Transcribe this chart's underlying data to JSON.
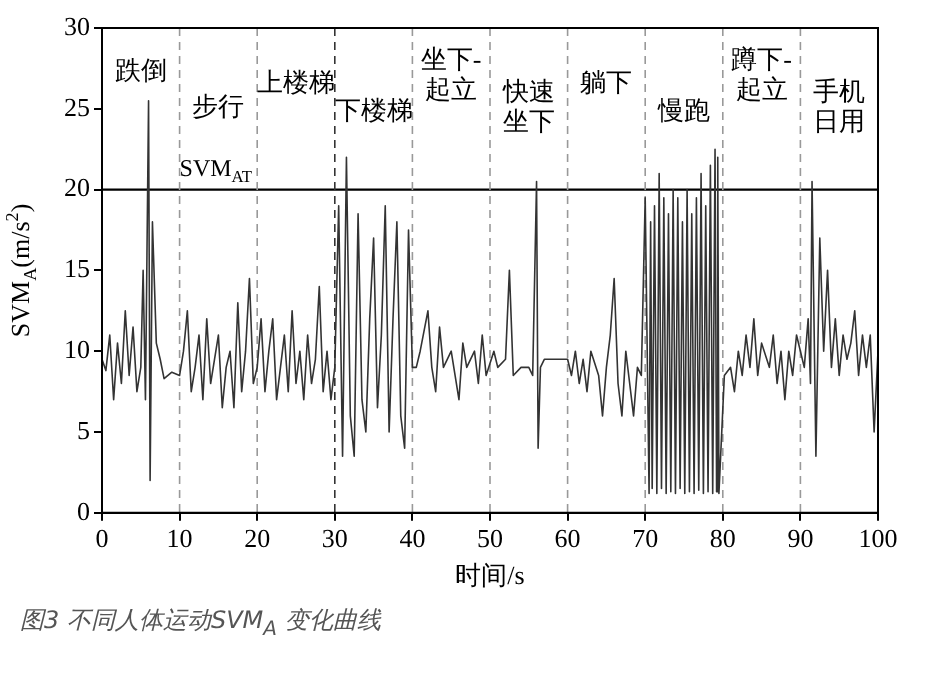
{
  "chart_data": {
    "type": "line",
    "title": "图3 不同人体运动SVM$_{A}$ 变化曲线",
    "xlabel": "时间/s",
    "ylabel": "SVM$_{A}$(m/s$^{2}$)",
    "xlim": [
      0,
      100
    ],
    "ylim": [
      0,
      30
    ],
    "xticks": [
      0,
      10,
      20,
      30,
      40,
      50,
      60,
      70,
      80,
      90,
      100
    ],
    "yticks": [
      0,
      5,
      10,
      15,
      20,
      25,
      30
    ],
    "grid": false,
    "legend": false,
    "marker": "none",
    "line_style": "solid",
    "series": [
      {
        "color": "#333333",
        "x": [
          0,
          0.5,
          1,
          1.5,
          2,
          2.5,
          3,
          3.5,
          4,
          4.5,
          5,
          5.3,
          5.6,
          6,
          6.2,
          6.5,
          7,
          7.5,
          8,
          9,
          10,
          10.5,
          11,
          11.5,
          12,
          12.5,
          13,
          13.5,
          14,
          14.5,
          15,
          15.5,
          16,
          16.5,
          17,
          17.5,
          18,
          18.5,
          19,
          19.5,
          20,
          20.5,
          21,
          21.5,
          22,
          22.5,
          23,
          23.5,
          24,
          24.5,
          25,
          25.5,
          26,
          26.5,
          27,
          27.5,
          28,
          28.5,
          29,
          29.5,
          30,
          30.5,
          31,
          31.5,
          32,
          32.5,
          33,
          33.5,
          34,
          34.5,
          35,
          35.5,
          36,
          36.5,
          37,
          37.5,
          38,
          38.5,
          39,
          39.5,
          40,
          40.5,
          41,
          42,
          42.5,
          43,
          43.5,
          44,
          45,
          45.5,
          46,
          46.5,
          47,
          48,
          48.5,
          49,
          49.5,
          50.5,
          51,
          52,
          52.5,
          53,
          54,
          55,
          55.5,
          56,
          56.2,
          56.5,
          57,
          58,
          59,
          60,
          60.5,
          61,
          61.5,
          62,
          62.5,
          63,
          64,
          64.5,
          65,
          65.5,
          66,
          66.5,
          67,
          67.5,
          68,
          68.5,
          69,
          69.5,
          70,
          70.5,
          70.7,
          70.9,
          71.2,
          71.5,
          71.8,
          72.1,
          72.4,
          72.7,
          73,
          73.3,
          73.6,
          73.9,
          74.2,
          74.5,
          74.8,
          75.1,
          75.4,
          75.7,
          76,
          76.3,
          76.6,
          76.9,
          77.2,
          77.5,
          77.8,
          78.1,
          78.4,
          78.7,
          79,
          79.2,
          79.35,
          79.5,
          80.2,
          81,
          81.5,
          82,
          82.5,
          83,
          83.5,
          84,
          84.5,
          85,
          86,
          86.5,
          87,
          87.5,
          88,
          88.5,
          89,
          89.5,
          90.5,
          91,
          91.3,
          91.5,
          92,
          92.5,
          93,
          93.5,
          94,
          94.5,
          95,
          95.5,
          96,
          96.5,
          97,
          97.5,
          98,
          98.5,
          99,
          99.5,
          100
        ],
        "values": [
          9.5,
          8.8,
          11,
          7,
          10.5,
          8,
          12.5,
          8.5,
          11.5,
          7.5,
          9,
          15,
          7,
          25.5,
          2,
          18,
          10.5,
          9.5,
          8.3,
          8.7,
          8.5,
          10,
          12.5,
          7.5,
          9,
          11,
          7,
          12,
          8,
          9.5,
          11,
          6.5,
          9,
          10,
          6.5,
          13,
          7.5,
          10,
          14.5,
          8,
          9,
          12,
          7.5,
          10,
          12,
          7,
          9,
          11,
          7.5,
          12.5,
          8,
          10,
          7,
          11,
          8,
          9.5,
          14,
          7.5,
          10,
          7,
          9,
          19,
          3.5,
          22,
          6,
          3.5,
          18.5,
          7,
          5,
          12,
          17,
          6.5,
          11,
          19,
          5,
          12,
          18,
          6,
          4,
          17.5,
          9,
          9,
          10,
          12.5,
          9,
          7.5,
          11.5,
          9,
          10,
          8.5,
          7,
          10.5,
          9,
          10,
          8,
          11,
          8.5,
          10,
          9,
          9.5,
          15,
          8.5,
          9,
          9,
          8.5,
          20.5,
          4,
          9,
          9.5,
          9.5,
          9.5,
          9.5,
          8.5,
          10,
          8,
          9.5,
          7.5,
          10,
          8.5,
          6,
          9,
          11,
          14.5,
          8,
          6,
          10,
          8,
          6,
          9,
          8.5,
          19.5,
          1.2,
          18,
          1.5,
          19,
          1.2,
          21,
          1.5,
          19.5,
          1.2,
          18.5,
          1.3,
          20,
          1.2,
          19.5,
          1.5,
          18,
          1.2,
          20,
          1.3,
          18.5,
          1.2,
          19.5,
          1.4,
          21,
          1.2,
          19,
          1.3,
          21.5,
          1.2,
          22.5,
          1.3,
          22,
          1.2,
          8.5,
          9,
          7.5,
          10,
          8.5,
          11,
          9,
          12,
          8.5,
          10.5,
          9,
          11,
          8,
          10,
          7,
          10,
          8.5,
          11,
          9,
          12,
          8,
          20.5,
          3.5,
          17,
          10,
          15,
          9,
          12,
          8.5,
          11,
          9.5,
          10.5,
          12.5,
          8.5,
          11,
          9,
          11,
          5,
          10
        ]
      }
    ],
    "ref_lines": [
      {
        "axis": "y",
        "value": 20,
        "label": "SVM$_{AT}$",
        "color": "#000000",
        "line_style": "solid"
      },
      {
        "axis": "x",
        "value": 10,
        "color": "#999999",
        "line_style": "dashed"
      },
      {
        "axis": "x",
        "value": 20,
        "color": "#999999",
        "line_style": "dashed"
      },
      {
        "axis": "x",
        "value": 30,
        "color": "#333333",
        "line_style": "dashed"
      },
      {
        "axis": "x",
        "value": 40,
        "color": "#999999",
        "line_style": "dashed"
      },
      {
        "axis": "x",
        "value": 50,
        "color": "#999999",
        "line_style": "dashed"
      },
      {
        "axis": "x",
        "value": 60,
        "color": "#999999",
        "line_style": "dashed"
      },
      {
        "axis": "x",
        "value": 70,
        "color": "#999999",
        "line_style": "dashed"
      },
      {
        "axis": "x",
        "value": 80,
        "color": "#999999",
        "line_style": "dashed"
      },
      {
        "axis": "x",
        "value": 90,
        "color": "#999999",
        "line_style": "dashed"
      }
    ],
    "annotations": [
      "跌倒",
      "步行",
      "上楼梯",
      "下楼梯",
      "坐下-起立",
      "快速坐下",
      "躺下",
      "慢跑",
      "蹲下-起立",
      "手机日用"
    ]
  }
}
